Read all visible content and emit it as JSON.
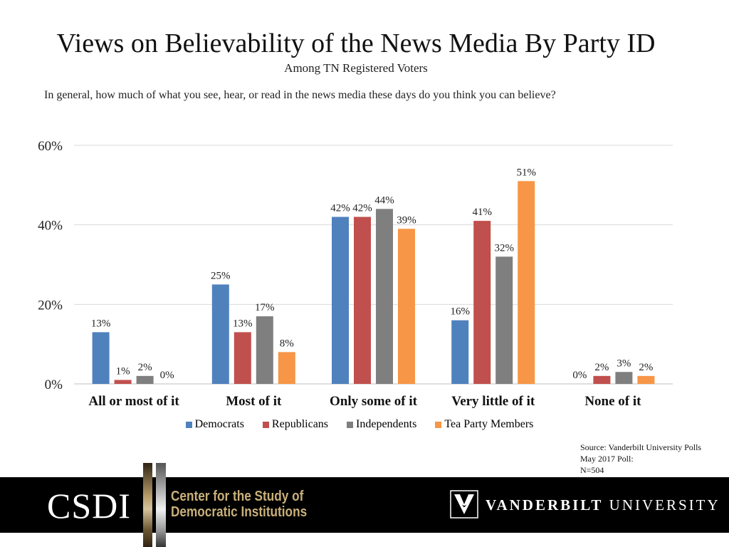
{
  "header": {
    "title": "Views on Believability of the News Media By Party ID",
    "subtitle": "Among TN Registered Voters",
    "question": "In general, how much of what you see, hear, or read in the news media these days do you think you can believe?"
  },
  "chart_data": {
    "type": "bar",
    "categories": [
      "All or most of it",
      "Most of it",
      "Only some of it",
      "Very little of it",
      "None of it"
    ],
    "series": [
      {
        "name": "Democrats",
        "color": "#4f81bd",
        "values": [
          13,
          25,
          42,
          16,
          0
        ],
        "labels": [
          "13%",
          "25%",
          "42%",
          "16%",
          "0%"
        ]
      },
      {
        "name": "Republicans",
        "color": "#c0504d",
        "values": [
          1,
          13,
          42,
          41,
          2
        ],
        "labels": [
          "1%",
          "13%",
          "42%",
          "41%",
          "2%"
        ]
      },
      {
        "name": "Independents",
        "color": "#7f7f7f",
        "values": [
          2,
          17,
          44,
          32,
          3
        ],
        "labels": [
          "2%",
          "17%",
          "44%",
          "32%",
          "3%"
        ]
      },
      {
        "name": "Tea Party Members",
        "color": "#f79646",
        "values": [
          0,
          8,
          39,
          51,
          2
        ],
        "labels": [
          "0%",
          "8%",
          "39%",
          "51%",
          "2%"
        ]
      }
    ],
    "ylim": [
      0,
      60
    ],
    "yticks": [
      0,
      20,
      40,
      60
    ],
    "ytick_labels": [
      "0%",
      "20%",
      "40%",
      "60%"
    ],
    "grid": true,
    "legend_position": "bottom"
  },
  "source": {
    "line1": "Source: Vanderbilt University Polls",
    "line2": "May 2017 Poll:",
    "line3": "N=504"
  },
  "footer": {
    "csdi": "CSDI",
    "center_line1": "Center for the Study of",
    "center_line2": "Democratic Institutions",
    "vu_bold": "VANDERBILT",
    "vu_rest": "UNIVERSITY"
  }
}
